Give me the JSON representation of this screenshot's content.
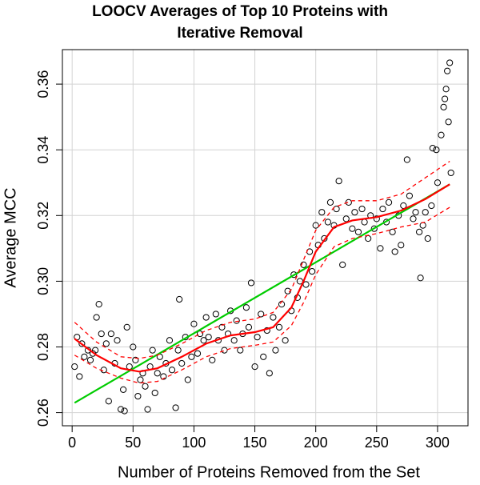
{
  "chart_data": {
    "type": "scatter",
    "title": [
      "LOOCV Averages of Top 10 Proteins with",
      "Iterative Removal"
    ],
    "x_label": "Number of Proteins Removed from the Set",
    "y_label": "Average MCC",
    "xlim": [
      -8,
      325
    ],
    "ylim": [
      0.256,
      0.3705
    ],
    "xticks": [
      0,
      50,
      100,
      150,
      200,
      250,
      300
    ],
    "yticks": [
      0.26,
      0.28,
      {
        "value": 0.3,
        "label": "0.30"
      },
      0.32,
      0.34,
      0.36
    ],
    "grid": true,
    "points": {
      "color": "#000000",
      "x": [
        2,
        4,
        6,
        8,
        10,
        13,
        15,
        17,
        19,
        20,
        22,
        24,
        26,
        28,
        30,
        32,
        35,
        37,
        40,
        42,
        43,
        45,
        47,
        50,
        52,
        54,
        56,
        58,
        60,
        62,
        64,
        66,
        68,
        70,
        72,
        75,
        77,
        80,
        82,
        85,
        87,
        88,
        90,
        93,
        95,
        98,
        100,
        103,
        105,
        108,
        110,
        112,
        115,
        118,
        120,
        123,
        125,
        128,
        130,
        133,
        135,
        138,
        140,
        143,
        145,
        147,
        150,
        152,
        155,
        157,
        160,
        162,
        165,
        167,
        170,
        172,
        175,
        177,
        180,
        182,
        185,
        187,
        190,
        192,
        195,
        197,
        200,
        202,
        205,
        207,
        210,
        212,
        215,
        217,
        219,
        222,
        225,
        227,
        230,
        232,
        235,
        238,
        240,
        243,
        245,
        248,
        250,
        253,
        255,
        258,
        260,
        263,
        265,
        268,
        270,
        272,
        275,
        277,
        280,
        282,
        285,
        286,
        288,
        290,
        292,
        295,
        296,
        299,
        300,
        303,
        305,
        306,
        307,
        308,
        309,
        310,
        311
      ],
      "y": [
        0.274,
        0.283,
        0.271,
        0.281,
        0.277,
        0.279,
        0.276,
        0.278,
        0.279,
        0.289,
        0.293,
        0.284,
        0.273,
        0.281,
        0.2635,
        0.284,
        0.275,
        0.282,
        0.261,
        0.267,
        0.2605,
        0.286,
        0.274,
        0.28,
        0.276,
        0.265,
        0.27,
        0.272,
        0.268,
        0.261,
        0.274,
        0.279,
        0.266,
        0.272,
        0.277,
        0.271,
        0.275,
        0.282,
        0.273,
        0.2615,
        0.279,
        0.2945,
        0.275,
        0.283,
        0.27,
        0.277,
        0.287,
        0.278,
        0.284,
        0.282,
        0.289,
        0.283,
        0.276,
        0.29,
        0.282,
        0.286,
        0.279,
        0.284,
        0.291,
        0.282,
        0.288,
        0.279,
        0.284,
        0.292,
        0.286,
        0.2995,
        0.274,
        0.283,
        0.29,
        0.277,
        0.285,
        0.272,
        0.289,
        0.279,
        0.286,
        0.293,
        0.282,
        0.297,
        0.291,
        0.302,
        0.295,
        0.3,
        0.305,
        0.299,
        0.309,
        0.303,
        0.317,
        0.311,
        0.321,
        0.313,
        0.318,
        0.324,
        0.317,
        0.322,
        0.3305,
        0.305,
        0.319,
        0.324,
        0.316,
        0.321,
        0.315,
        0.322,
        0.318,
        0.313,
        0.32,
        0.316,
        0.319,
        0.31,
        0.322,
        0.318,
        0.324,
        0.315,
        0.309,
        0.32,
        0.311,
        0.323,
        0.337,
        0.326,
        0.319,
        0.321,
        0.315,
        0.301,
        0.317,
        0.321,
        0.313,
        0.323,
        0.3405,
        0.34,
        0.33,
        0.3445,
        0.353,
        0.3555,
        0.3585,
        0.364,
        0.3485,
        0.3665,
        0.333
      ]
    },
    "lines": [
      {
        "color": "#00cc00",
        "dashed": false,
        "x": [
          2,
          310
        ],
        "y": [
          0.263,
          0.3295
        ]
      },
      {
        "color": "#ff0000",
        "dashed": false,
        "x": [
          2,
          20,
          40,
          55,
          70,
          90,
          110,
          130,
          150,
          165,
          180,
          190,
          200,
          215,
          230,
          250,
          270,
          290,
          310
        ],
        "y": [
          0.2825,
          0.2775,
          0.2735,
          0.2725,
          0.2735,
          0.277,
          0.281,
          0.2835,
          0.2845,
          0.286,
          0.292,
          0.3,
          0.309,
          0.3165,
          0.3185,
          0.3195,
          0.3215,
          0.325,
          0.3295
        ]
      },
      {
        "color": "#ff0000",
        "dashed": true,
        "x": [
          2,
          20,
          40,
          55,
          70,
          90,
          110,
          130,
          150,
          165,
          180,
          190,
          200,
          215,
          230,
          250,
          270,
          290,
          310
        ],
        "y": [
          0.2875,
          0.2815,
          0.277,
          0.2765,
          0.2775,
          0.281,
          0.285,
          0.2875,
          0.2885,
          0.2905,
          0.2975,
          0.3065,
          0.3155,
          0.3225,
          0.3245,
          0.3245,
          0.3265,
          0.3315,
          0.3365
        ]
      },
      {
        "color": "#ff0000",
        "dashed": true,
        "x": [
          2,
          20,
          40,
          55,
          70,
          90,
          110,
          130,
          150,
          165,
          180,
          190,
          200,
          215,
          230,
          250,
          270,
          290,
          310
        ],
        "y": [
          0.2775,
          0.2735,
          0.2705,
          0.269,
          0.2695,
          0.273,
          0.277,
          0.2795,
          0.2805,
          0.2815,
          0.2865,
          0.2935,
          0.302,
          0.3105,
          0.313,
          0.3145,
          0.3165,
          0.318,
          0.3225
        ]
      }
    ]
  }
}
